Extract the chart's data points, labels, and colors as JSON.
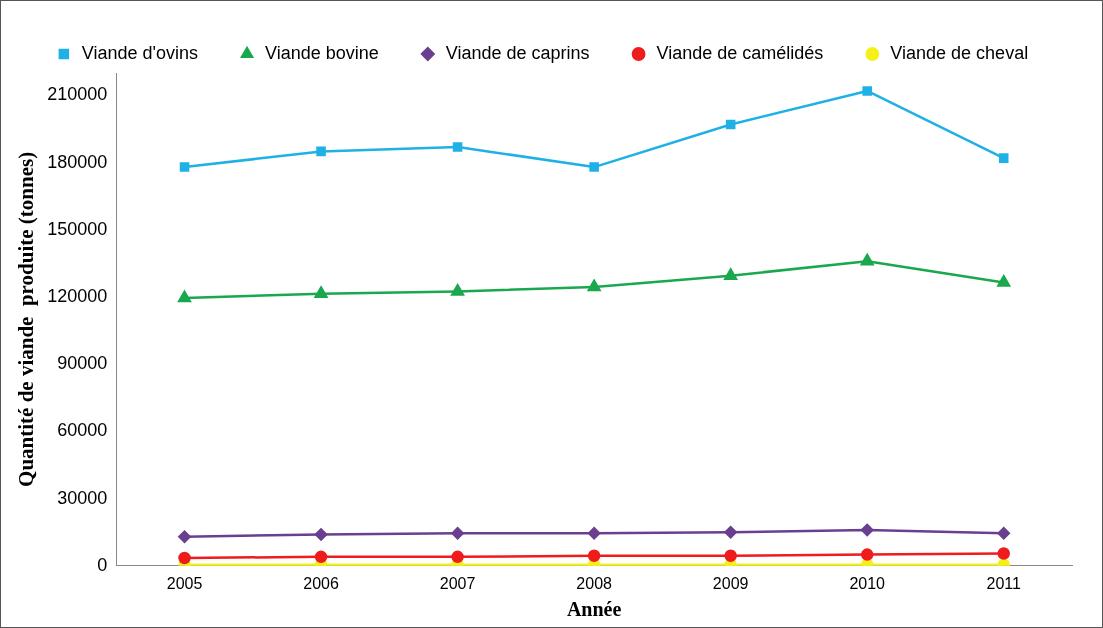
{
  "chart_data": {
    "type": "line",
    "xlabel": "Année",
    "ylabel": "Quantité de viande  produite (tonnes)",
    "categories": [
      "2005",
      "2006",
      "2007",
      "2008",
      "2009",
      "2010",
      "2011"
    ],
    "series": [
      {
        "name": "Viande d'ovins",
        "color": "#1fb1e6",
        "marker": "square",
        "values": [
          178000,
          185000,
          187000,
          178000,
          197000,
          212000,
          182000
        ]
      },
      {
        "name": "Viande bovine",
        "color": "#1aa84f",
        "marker": "triangle",
        "values": [
          119500,
          121500,
          122500,
          124500,
          129500,
          136000,
          126500
        ]
      },
      {
        "name": "Viande de caprins",
        "color": "#6a3f8f",
        "marker": "diamond",
        "values": [
          13000,
          14000,
          14500,
          14500,
          15000,
          16000,
          14500
        ]
      },
      {
        "name": "Viande de camélidés",
        "color": "#ee1c1c",
        "marker": "circle",
        "values": [
          3500,
          4000,
          4000,
          4500,
          4500,
          5000,
          5500
        ]
      },
      {
        "name": "Viande de cheval",
        "color": "#f5f01a",
        "marker": "circle",
        "values": [
          500,
          500,
          500,
          500,
          500,
          500,
          500
        ]
      }
    ],
    "ylim": [
      0,
      220000
    ],
    "yticks": [
      0,
      30000,
      60000,
      90000,
      120000,
      150000,
      180000,
      210000
    ],
    "grid": false,
    "legend": "top",
    "line_style": "solid"
  }
}
